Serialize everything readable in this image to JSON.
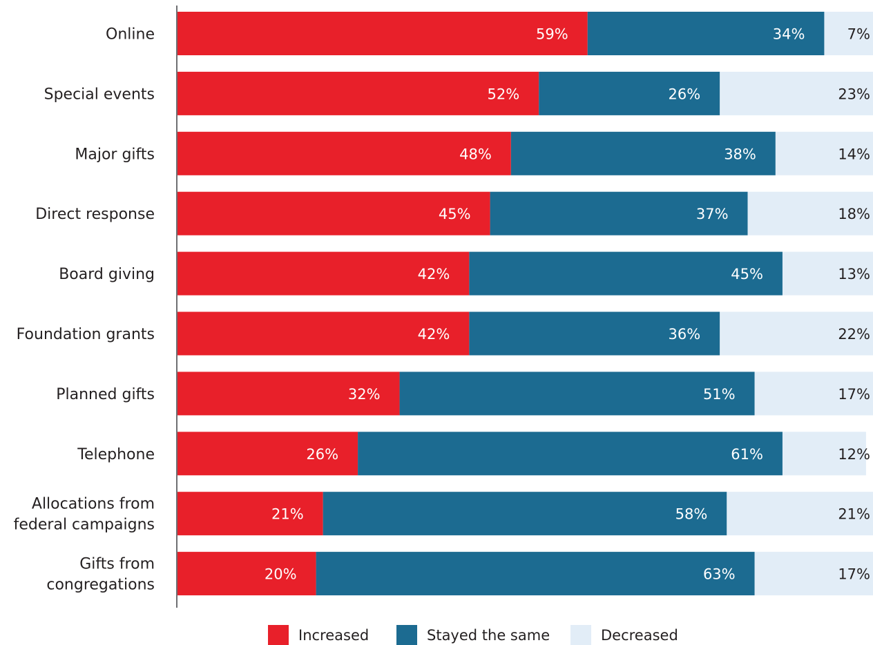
{
  "chart_data": {
    "type": "bar",
    "orientation": "horizontal",
    "stacked": true,
    "categories": [
      "Online",
      "Special events",
      "Major gifts",
      "Direct response",
      "Board giving",
      "Foundation grants",
      "Planned gifts",
      "Telephone",
      "Allocations from federal campaigns",
      "Gifts from congregations"
    ],
    "category_lines": [
      [
        "Online"
      ],
      [
        "Special events"
      ],
      [
        "Major gifts"
      ],
      [
        "Direct response"
      ],
      [
        "Board giving"
      ],
      [
        "Foundation grants"
      ],
      [
        "Planned gifts"
      ],
      [
        "Telephone"
      ],
      [
        "Allocations from",
        "federal campaigns"
      ],
      [
        "Gifts from",
        "congregations"
      ]
    ],
    "series": [
      {
        "name": "Increased",
        "color": "#e8202a",
        "label_color": "#ffffff",
        "values": [
          59,
          52,
          48,
          45,
          42,
          42,
          32,
          26,
          21,
          20
        ],
        "labels": [
          "59%",
          "52%",
          "48%",
          "45%",
          "42%",
          "42%",
          "32%",
          "26%",
          "21%",
          "20%"
        ]
      },
      {
        "name": "Stayed the same",
        "color": "#1c6b91",
        "label_color": "#ffffff",
        "values": [
          34,
          26,
          38,
          37,
          45,
          36,
          51,
          61,
          58,
          63
        ],
        "labels": [
          "34%",
          "26%",
          "38%",
          "37%",
          "45%",
          "36%",
          "51%",
          "61%",
          "58%",
          "63%"
        ]
      },
      {
        "name": "Decreased",
        "color": "#e2edf7",
        "label_color": "#231f20",
        "values": [
          7,
          23,
          14,
          18,
          13,
          22,
          17,
          12,
          21,
          17
        ],
        "labels": [
          "7%",
          "23%",
          "14%",
          "18%",
          "13%",
          "22%",
          "17%",
          "12%",
          "21%",
          "17%"
        ]
      }
    ],
    "xlim": [
      0,
      100
    ],
    "grid": false,
    "legend_position": "bottom"
  }
}
